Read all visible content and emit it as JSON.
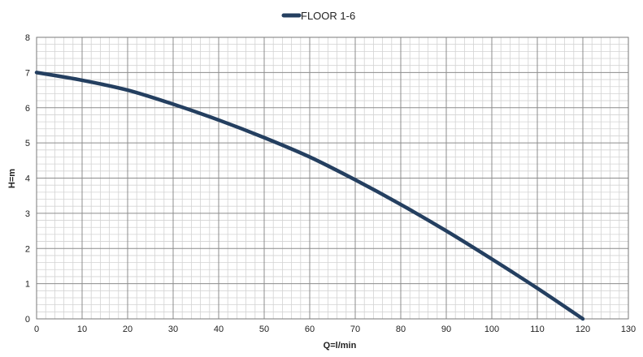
{
  "chart_data": {
    "type": "line",
    "title": "",
    "xlabel": "Q=l/min",
    "ylabel": "H=m",
    "xlim": [
      0,
      130
    ],
    "ylim": [
      0,
      8
    ],
    "x_ticks": [
      "0",
      "10",
      "20",
      "30",
      "40",
      "50",
      "60",
      "70",
      "80",
      "90",
      "100",
      "110",
      "120",
      "130"
    ],
    "y_ticks": [
      "0",
      "1",
      "2",
      "3",
      "4",
      "5",
      "6",
      "7",
      "8"
    ],
    "grid": "major and minor",
    "legend": "top-center",
    "series": [
      {
        "name": "FLOOR 1-6",
        "color": "#243f60",
        "x": [
          0,
          10,
          20,
          30,
          40,
          50,
          60,
          70,
          80,
          90,
          100,
          110,
          120
        ],
        "y": [
          7.0,
          6.78,
          6.5,
          6.1,
          5.65,
          5.15,
          4.6,
          3.95,
          3.25,
          2.5,
          1.7,
          0.87,
          0.0
        ]
      }
    ]
  }
}
